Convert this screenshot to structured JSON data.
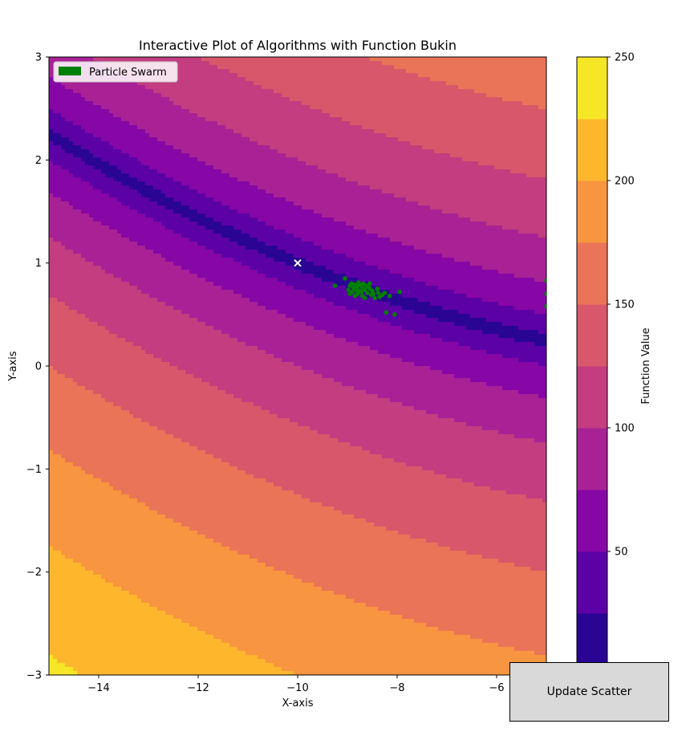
{
  "chart_data": {
    "type": "contour",
    "title": "Interactive Plot of Algorithms with Function Bukin",
    "xlabel": "X-axis",
    "ylabel": "Y-axis",
    "xlim": [
      -15,
      -5
    ],
    "ylim": [
      -3,
      3
    ],
    "x_ticks": [
      -14,
      -12,
      -10,
      -8,
      -6
    ],
    "y_ticks": [
      -3,
      -2,
      -1,
      0,
      1,
      2,
      3
    ],
    "colormap": "plasma",
    "contour_levels": [
      0,
      25,
      50,
      75,
      100,
      125,
      150,
      175,
      200,
      225,
      250
    ],
    "level_colors": [
      "#2a0593",
      "#5c01a6",
      "#8606a6",
      "#a82296",
      "#c33d80",
      "#d8576b",
      "#ea7457",
      "#f89540",
      "#feb72d",
      "#f6e726"
    ],
    "colorbar": {
      "label": "Function Value",
      "ticks": [
        50,
        100,
        150,
        200,
        250
      ],
      "range": [
        0,
        250
      ]
    },
    "legend": {
      "placement": "upper-left",
      "entries": [
        {
          "label": "Particle Swarm",
          "color": "#008000"
        }
      ]
    },
    "marker_best": {
      "x": -10,
      "y": 1,
      "color": "#ffffff",
      "symbol": "x"
    },
    "series": [
      {
        "name": "Particle Swarm",
        "type": "scatter",
        "color": "#008000",
        "points": [
          [
            -9.25,
            0.78
          ],
          [
            -9.05,
            0.85
          ],
          [
            -8.98,
            0.74
          ],
          [
            -8.95,
            0.78
          ],
          [
            -8.92,
            0.8
          ],
          [
            -8.9,
            0.72
          ],
          [
            -8.88,
            0.76
          ],
          [
            -8.85,
            0.79
          ],
          [
            -8.82,
            0.74
          ],
          [
            -8.8,
            0.77
          ],
          [
            -8.8,
            0.7
          ],
          [
            -8.78,
            0.81
          ],
          [
            -8.75,
            0.73
          ],
          [
            -8.73,
            0.79
          ],
          [
            -8.7,
            0.76
          ],
          [
            -8.7,
            0.68
          ],
          [
            -8.68,
            0.8
          ],
          [
            -8.65,
            0.74
          ],
          [
            -8.62,
            0.78
          ],
          [
            -8.6,
            0.71
          ],
          [
            -8.58,
            0.77
          ],
          [
            -8.55,
            0.75
          ],
          [
            -8.52,
            0.69
          ],
          [
            -8.5,
            0.73
          ],
          [
            -8.48,
            0.7
          ],
          [
            -8.45,
            0.66
          ],
          [
            -8.4,
            0.75
          ],
          [
            -8.38,
            0.71
          ],
          [
            -8.35,
            0.67
          ],
          [
            -8.3,
            0.69
          ],
          [
            -8.25,
            0.71
          ],
          [
            -8.22,
            0.52
          ],
          [
            -8.15,
            0.68
          ],
          [
            -8.05,
            0.5
          ],
          [
            -7.95,
            0.72
          ],
          [
            -8.85,
            0.68
          ],
          [
            -8.65,
            0.66
          ],
          [
            -8.55,
            0.8
          ],
          [
            -8.95,
            0.7
          ],
          [
            -8.72,
            0.72
          ],
          [
            -5.0,
            0.83
          ],
          [
            -5.0,
            0.7
          ],
          [
            -5.0,
            0.58
          ]
        ]
      }
    ]
  },
  "controls": {
    "update_label": "Update Scatter"
  }
}
